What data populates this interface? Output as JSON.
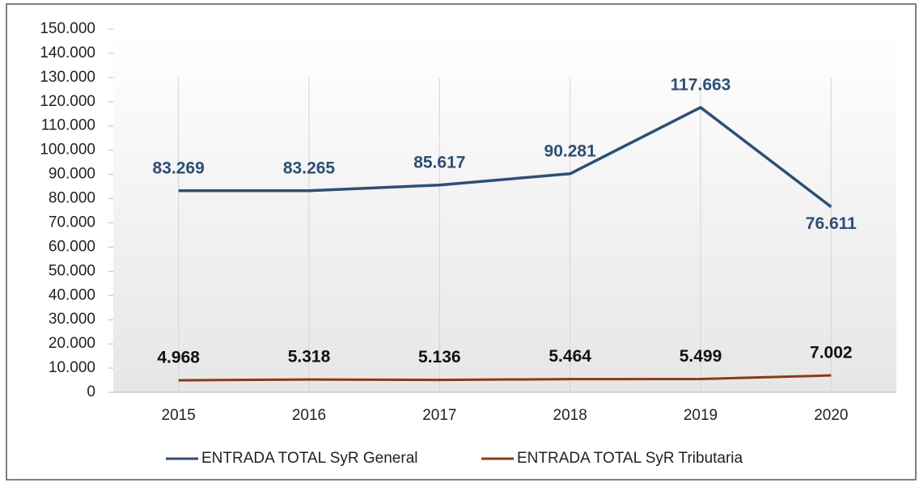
{
  "chart_data": {
    "type": "line",
    "categories": [
      "2015",
      "2016",
      "2017",
      "2018",
      "2019",
      "2020"
    ],
    "series": [
      {
        "name": "ENTRADA TOTAL SyR General",
        "color": "#2e4f74",
        "values": [
          83269,
          83265,
          85617,
          90281,
          117663,
          76611
        ],
        "value_labels": [
          "83.269",
          "83.265",
          "85.617",
          "90.281",
          "117.663",
          "76.611"
        ]
      },
      {
        "name": "ENTRADA TOTAL SyR Tributaria",
        "color": "#8b3a14",
        "values": [
          4968,
          5318,
          5136,
          5464,
          5499,
          7002
        ],
        "value_labels": [
          "4.968",
          "5.318",
          "5.136",
          "5.464",
          "5.499",
          "7.002"
        ]
      }
    ],
    "ylim": [
      0,
      150000
    ],
    "yticks": [
      0,
      {
        "value": 10000,
        "label": "10.000"
      },
      {
        "value": 20000,
        "label": "20.000"
      },
      {
        "value": 30000,
        "label": "30.000"
      },
      {
        "value": 40000,
        "label": "40.000"
      },
      {
        "value": 50000,
        "label": "50.000"
      },
      {
        "value": 60000,
        "label": "60.000"
      },
      {
        "value": 70000,
        "label": "70.000"
      },
      {
        "value": 80000,
        "label": "80.000"
      },
      {
        "value": 90000,
        "label": "90.000"
      },
      {
        "value": 100000,
        "label": "100.000"
      },
      {
        "value": 110000,
        "label": "110.000"
      },
      {
        "value": 120000,
        "label": "120.000"
      },
      {
        "value": 130000,
        "label": "130.000"
      },
      {
        "value": 140000,
        "label": "140.000"
      },
      {
        "value": 150000,
        "label": "150.000"
      }
    ],
    "grid": true,
    "legend": "bottom"
  }
}
